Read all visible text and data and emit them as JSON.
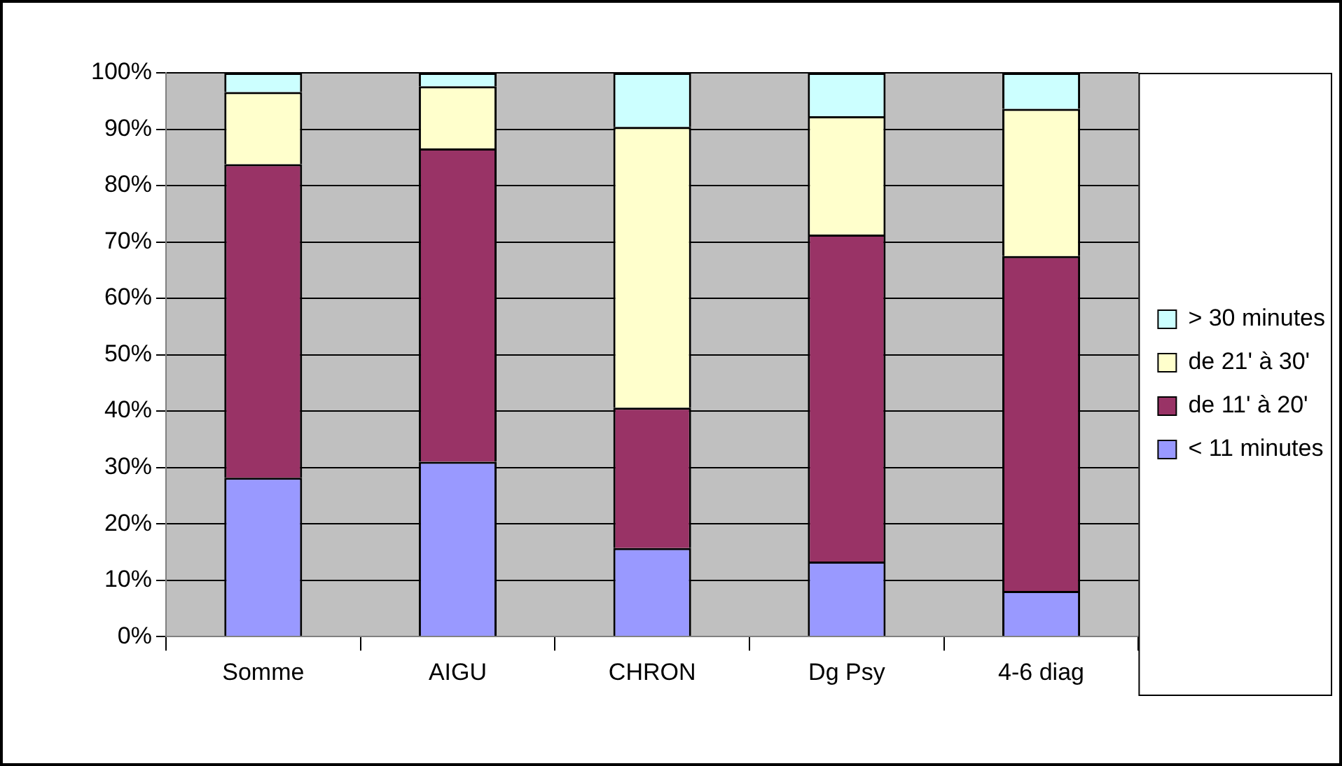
{
  "chart_data": {
    "type": "bar",
    "stacked": true,
    "categories": [
      "Somme",
      "AIGU",
      "CHRON",
      "Dg Psy",
      "4-6 diag"
    ],
    "series": [
      {
        "name": "< 11 minutes",
        "color": "#9999ff",
        "values": [
          28.2,
          31.0,
          15.7,
          13.3,
          8.1
        ]
      },
      {
        "name": "de 11' à 20'",
        "color": "#993366",
        "values": [
          55.6,
          55.6,
          24.9,
          58.0,
          59.4
        ]
      },
      {
        "name": "de 21' à 30'",
        "color": "#ffffcc",
        "values": [
          12.8,
          11.0,
          49.8,
          21.0,
          26.1
        ]
      },
      {
        "name": "> 30 minutes",
        "color": "#ccffff",
        "values": [
          3.4,
          2.4,
          9.6,
          7.7,
          6.4
        ]
      }
    ],
    "ylim": [
      0,
      100
    ],
    "yticks": [
      {
        "value": 0,
        "label": "0%"
      },
      {
        "value": 10,
        "label": "10%"
      },
      {
        "value": 20,
        "label": "20%"
      },
      {
        "value": 30,
        "label": "30%"
      },
      {
        "value": 40,
        "label": "40%"
      },
      {
        "value": 50,
        "label": "50%"
      },
      {
        "value": 60,
        "label": "60%"
      },
      {
        "value": 70,
        "label": "70%"
      },
      {
        "value": 80,
        "label": "80%"
      },
      {
        "value": 90,
        "label": "90%"
      },
      {
        "value": 100,
        "label": "100%"
      }
    ],
    "grid": "y",
    "legend": "right"
  }
}
